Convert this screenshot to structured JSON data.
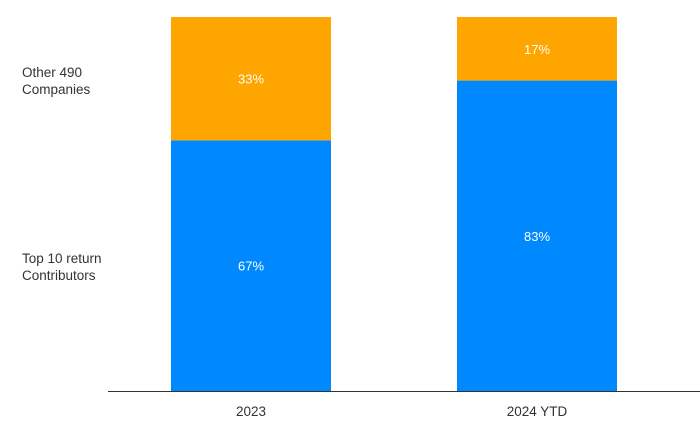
{
  "chart_data": {
    "type": "bar",
    "stacked": true,
    "percent_stacked": true,
    "categories": [
      "2023",
      "2024 YTD"
    ],
    "series": [
      {
        "name": "Top 10 return Contributors",
        "label_lines": [
          "Top 10 return",
          "Contributors"
        ],
        "values": [
          67,
          83
        ],
        "color": "#0088ff"
      },
      {
        "name": "Other 490 Companies",
        "label_lines": [
          "Other 490",
          "Companies"
        ],
        "values": [
          33,
          17
        ],
        "color": "#ffa500"
      }
    ],
    "data_labels": [
      [
        "67%",
        "83%"
      ],
      [
        "33%",
        "17%"
      ]
    ],
    "ylim": [
      0,
      100
    ],
    "grid": false,
    "legend": "left",
    "title": "",
    "xlabel": "",
    "ylabel": ""
  }
}
